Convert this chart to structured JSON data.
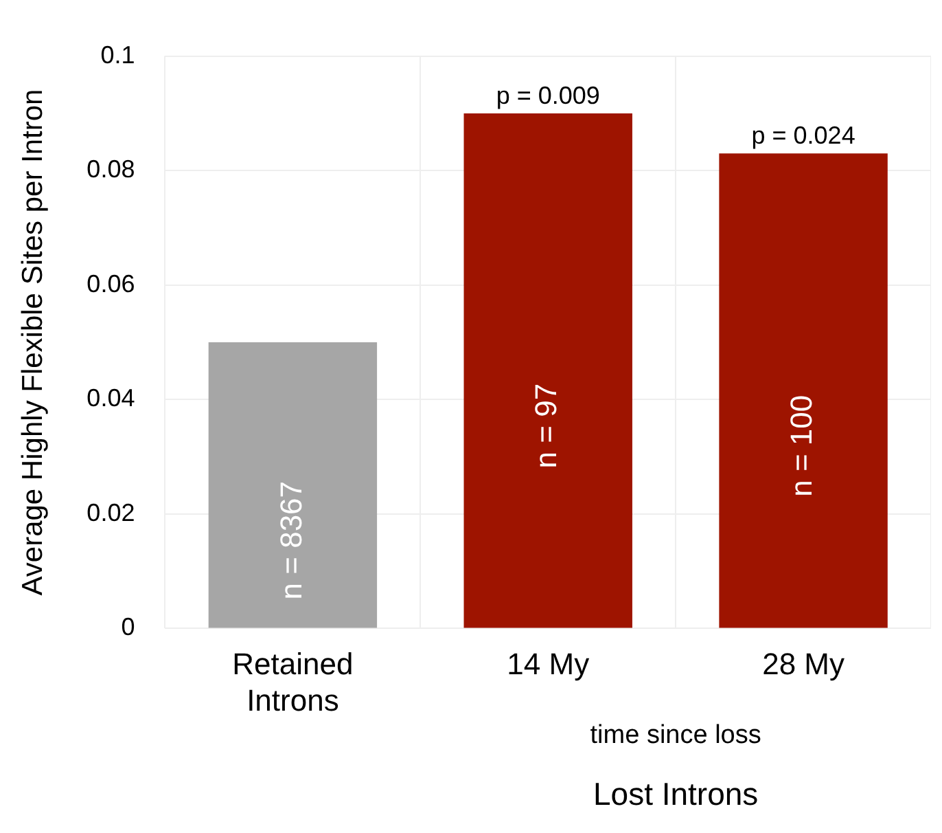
{
  "chart_data": {
    "type": "bar",
    "ylabel": "Average Highly Flexible Sites per Intron",
    "categories": [
      "Retained\nIntrons",
      "14 My",
      "28 My"
    ],
    "values": [
      0.05,
      0.09,
      0.083
    ],
    "colors": [
      "#a6a6a6",
      "#9e1400",
      "#9e1400"
    ],
    "ylim": [
      0,
      0.1
    ],
    "yticks": [
      0,
      0.02,
      0.04,
      0.06,
      0.08,
      0.1
    ],
    "grid": true,
    "annotations": [
      {
        "text": "p = 0.009",
        "x": "14 My",
        "y": 0.09
      },
      {
        "text": "p = 0.024",
        "x": "28 My",
        "y": 0.083
      },
      "n = 8367",
      "n = 97",
      "n = 100",
      "time since loss",
      "Lost Introns"
    ]
  }
}
